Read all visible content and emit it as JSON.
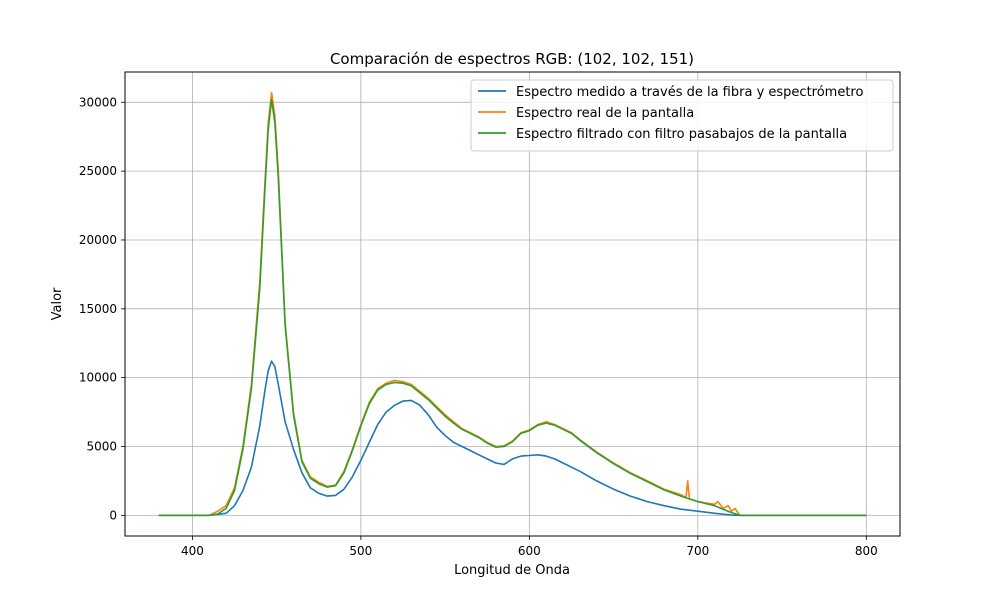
{
  "chart_data": {
    "type": "line",
    "title": "Comparación de espectros RGB: (102, 102, 151)",
    "xlabel": "Longitud de Onda",
    "ylabel": "Valor",
    "xlim": [
      360,
      820
    ],
    "ylim": [
      -1500,
      32200
    ],
    "xticks": [
      400,
      500,
      600,
      700,
      800
    ],
    "yticks": [
      0,
      5000,
      10000,
      15000,
      20000,
      25000,
      30000
    ],
    "grid": true,
    "legend_position": "top-right",
    "series": [
      {
        "name": "Espectro medido a través de la fibra y espectrómetro",
        "color": "#1f77b4",
        "x": [
          380,
          410,
          420,
          425,
          430,
          435,
          440,
          443,
          445,
          447,
          449,
          451,
          455,
          460,
          465,
          470,
          475,
          480,
          485,
          490,
          495,
          500,
          505,
          510,
          515,
          520,
          525,
          530,
          535,
          540,
          545,
          550,
          555,
          560,
          565,
          570,
          575,
          580,
          585,
          590,
          595,
          600,
          605,
          610,
          615,
          620,
          625,
          630,
          640,
          650,
          660,
          670,
          680,
          690,
          700,
          710,
          715,
          720,
          725,
          800
        ],
        "y": [
          0,
          0,
          150,
          700,
          1800,
          3500,
          6500,
          9000,
          10500,
          11200,
          10800,
          9500,
          6800,
          4800,
          3100,
          2000,
          1600,
          1400,
          1450,
          1900,
          2800,
          4000,
          5300,
          6600,
          7500,
          8000,
          8300,
          8350,
          8000,
          7300,
          6400,
          5800,
          5300,
          5000,
          4700,
          4400,
          4100,
          3800,
          3700,
          4100,
          4300,
          4350,
          4400,
          4300,
          4100,
          3800,
          3500,
          3200,
          2500,
          1900,
          1400,
          1000,
          700,
          450,
          300,
          150,
          80,
          20,
          0,
          0
        ]
      },
      {
        "name": "Espectro real de la pantalla",
        "color": "#ff7f0e",
        "x": [
          380,
          410,
          415,
          420,
          425,
          430,
          435,
          440,
          443,
          445,
          447,
          449,
          451,
          455,
          460,
          465,
          470,
          475,
          480,
          485,
          490,
          495,
          500,
          505,
          510,
          515,
          520,
          525,
          530,
          535,
          540,
          545,
          550,
          555,
          560,
          565,
          570,
          575,
          580,
          585,
          590,
          595,
          600,
          605,
          610,
          615,
          620,
          625,
          630,
          640,
          650,
          660,
          670,
          680,
          690,
          693,
          694,
          695,
          700,
          705,
          710,
          712,
          715,
          718,
          720,
          722,
          725,
          800
        ],
        "y": [
          0,
          0,
          300,
          700,
          2000,
          5000,
          9500,
          17000,
          24000,
          28500,
          30700,
          29000,
          25000,
          14000,
          7500,
          4000,
          2800,
          2400,
          2100,
          2200,
          3200,
          4800,
          6600,
          8200,
          9200,
          9600,
          9800,
          9700,
          9500,
          9000,
          8500,
          7900,
          7300,
          6800,
          6300,
          6000,
          5700,
          5300,
          5000,
          5050,
          5400,
          6000,
          6200,
          6600,
          6800,
          6600,
          6300,
          6000,
          5500,
          4600,
          3800,
          3100,
          2500,
          1900,
          1500,
          1300,
          2500,
          1200,
          1000,
          900,
          800,
          1000,
          500,
          700,
          300,
          500,
          0,
          0
        ]
      },
      {
        "name": "Espectro filtrado con filtro pasabajos de la pantalla",
        "color": "#2ca02c",
        "x": [
          380,
          410,
          415,
          420,
          425,
          430,
          435,
          440,
          443,
          445,
          447,
          449,
          451,
          455,
          460,
          465,
          470,
          475,
          480,
          485,
          490,
          495,
          500,
          505,
          510,
          515,
          520,
          525,
          530,
          535,
          540,
          545,
          550,
          555,
          560,
          565,
          570,
          575,
          580,
          585,
          590,
          595,
          600,
          605,
          610,
          615,
          620,
          625,
          630,
          640,
          650,
          660,
          670,
          680,
          690,
          700,
          710,
          715,
          720,
          725,
          800
        ],
        "y": [
          0,
          0,
          100,
          500,
          1800,
          4800,
          9200,
          16500,
          23500,
          28000,
          30200,
          28500,
          24500,
          13800,
          7300,
          3900,
          2700,
          2300,
          2050,
          2150,
          3100,
          4700,
          6500,
          8100,
          9100,
          9500,
          9650,
          9600,
          9400,
          8900,
          8400,
          7800,
          7200,
          6700,
          6250,
          5950,
          5650,
          5250,
          4950,
          5000,
          5350,
          5950,
          6150,
          6550,
          6700,
          6550,
          6250,
          5950,
          5450,
          4550,
          3750,
          3050,
          2450,
          1850,
          1400,
          1000,
          700,
          450,
          200,
          0,
          0
        ]
      }
    ]
  }
}
